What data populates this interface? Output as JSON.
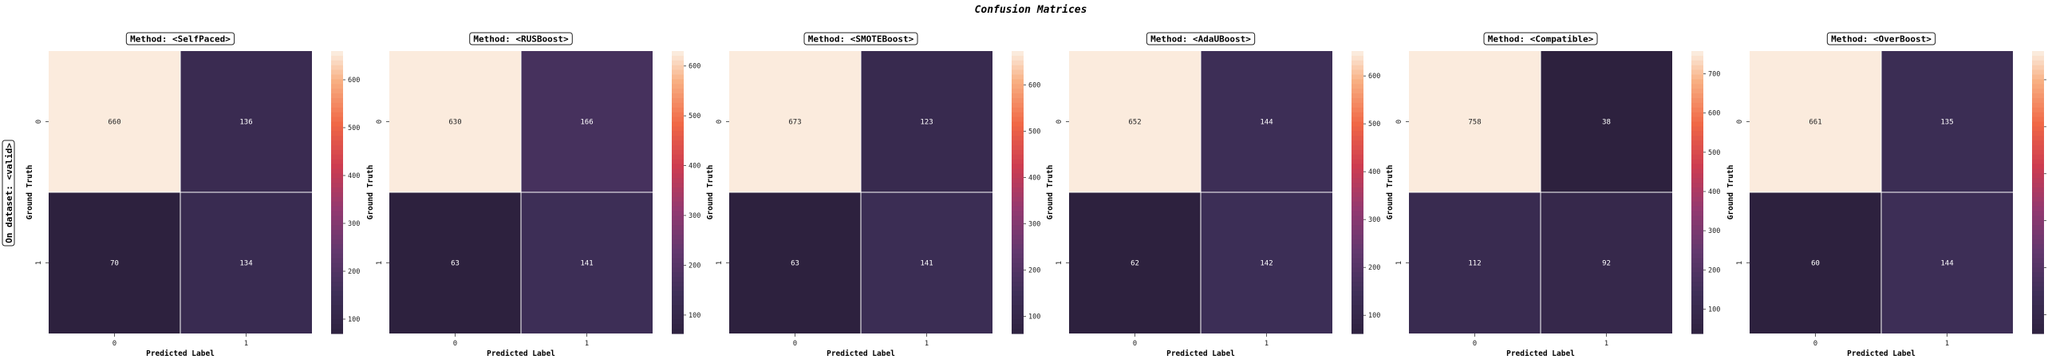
{
  "figure": {
    "title": "Confusion Matrices",
    "row_label": "On dataset: <valid>"
  },
  "chart_data": [
    {
      "type": "heatmap",
      "title": "Method: <SelfPaced>",
      "xlabel": "Predicted Label",
      "ylabel": "Ground Truth",
      "x_ticks": [
        "0",
        "1"
      ],
      "y_ticks": [
        "0",
        "1"
      ],
      "values": [
        [
          660,
          136
        ],
        [
          70,
          134
        ]
      ],
      "colorbar_ticks": [
        100,
        200,
        300,
        400,
        500,
        600
      ],
      "colorbar_range": [
        70,
        660
      ]
    },
    {
      "type": "heatmap",
      "title": "Method: <RUSBoost>",
      "xlabel": "Predicted Label",
      "ylabel": "Ground Truth",
      "x_ticks": [
        "0",
        "1"
      ],
      "y_ticks": [
        "0",
        "1"
      ],
      "values": [
        [
          630,
          166
        ],
        [
          63,
          141
        ]
      ],
      "colorbar_ticks": [
        100,
        200,
        300,
        400,
        500,
        600
      ],
      "colorbar_range": [
        63,
        630
      ]
    },
    {
      "type": "heatmap",
      "title": "Method: <SMOTEBoost>",
      "xlabel": "Predicted Label",
      "ylabel": "Ground Truth",
      "x_ticks": [
        "0",
        "1"
      ],
      "y_ticks": [
        "0",
        "1"
      ],
      "values": [
        [
          673,
          123
        ],
        [
          63,
          141
        ]
      ],
      "colorbar_ticks": [
        100,
        200,
        300,
        400,
        500,
        600
      ],
      "colorbar_range": [
        63,
        673
      ]
    },
    {
      "type": "heatmap",
      "title": "Method: <AdaUBoost>",
      "xlabel": "Predicted Label",
      "ylabel": "Ground Truth",
      "x_ticks": [
        "0",
        "1"
      ],
      "y_ticks": [
        "0",
        "1"
      ],
      "values": [
        [
          652,
          144
        ],
        [
          62,
          142
        ]
      ],
      "colorbar_ticks": [
        100,
        200,
        300,
        400,
        500,
        600
      ],
      "colorbar_range": [
        62,
        652
      ]
    },
    {
      "type": "heatmap",
      "title": "Method: <Compatible>",
      "xlabel": "Predicted Label",
      "ylabel": "Ground Truth",
      "x_ticks": [
        "0",
        "1"
      ],
      "y_ticks": [
        "0",
        "1"
      ],
      "values": [
        [
          758,
          38
        ],
        [
          112,
          92
        ]
      ],
      "colorbar_ticks": [
        100,
        200,
        300,
        400,
        500,
        600,
        700
      ],
      "colorbar_range": [
        38,
        758
      ]
    },
    {
      "type": "heatmap",
      "title": "Method: <OverBoost>",
      "xlabel": "Predicted Label",
      "ylabel": "Ground Truth",
      "x_ticks": [
        "0",
        "1"
      ],
      "y_ticks": [
        "0",
        "1"
      ],
      "values": [
        [
          661,
          135
        ],
        [
          60,
          144
        ]
      ],
      "colorbar_ticks": [
        100,
        200,
        300,
        400,
        500,
        600
      ],
      "colorbar_range": [
        60,
        661
      ]
    }
  ]
}
